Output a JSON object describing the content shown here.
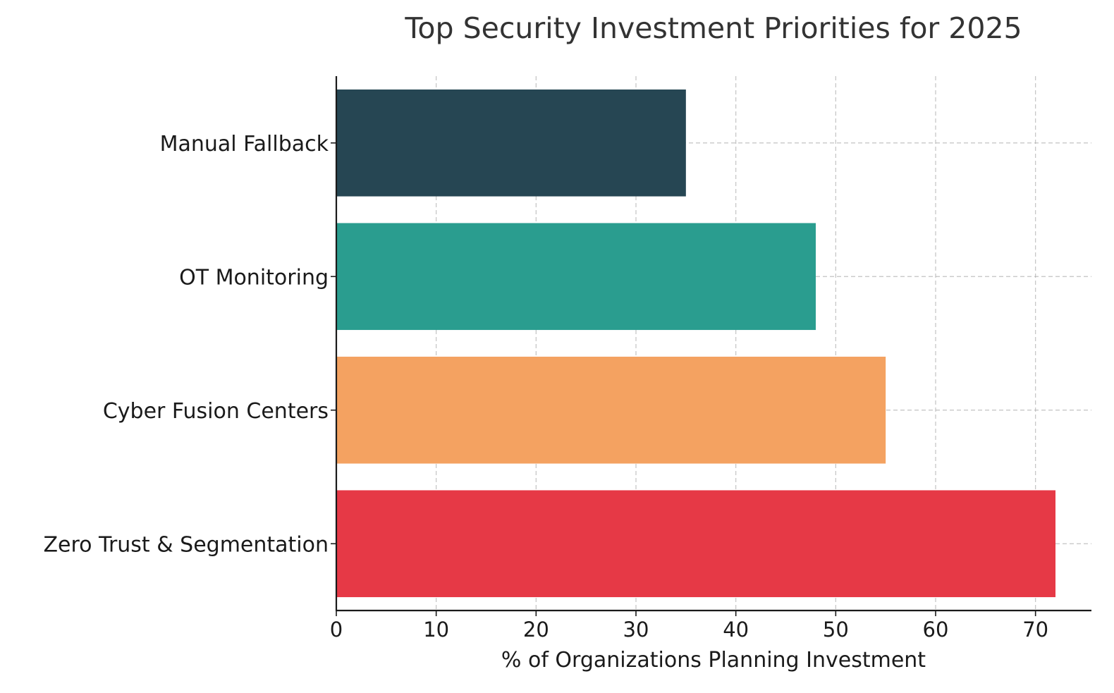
{
  "chart_data": {
    "type": "bar",
    "orientation": "horizontal",
    "title": "Top Security Investment Priorities for 2025",
    "xlabel": "% of Organizations Planning Investment",
    "ylabel": "",
    "categories": [
      "Zero Trust & Segmentation",
      "Cyber Fusion Centers",
      "OT Monitoring",
      "Manual Fallback"
    ],
    "values": [
      72,
      55,
      48,
      35
    ],
    "colors": [
      "#e63946",
      "#f4a261",
      "#2a9d8f",
      "#264653"
    ],
    "xlim": [
      0,
      75.6
    ],
    "xticks": [
      0,
      10,
      20,
      30,
      40,
      50,
      60,
      70
    ],
    "grid": true,
    "legend": "none"
  }
}
